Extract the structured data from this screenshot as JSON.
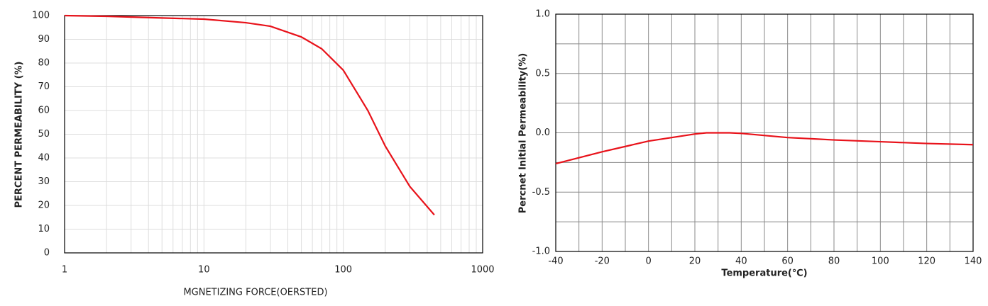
{
  "chart_data": [
    {
      "type": "line",
      "xlog": true,
      "xlabel": "MGNETIZING FORCE(OERSTED)",
      "ylabel": "PERCENT PERMEABILITY (%)",
      "xlim": [
        1,
        1000
      ],
      "ylim": [
        0,
        100
      ],
      "xticks": [
        1,
        10,
        100,
        1000
      ],
      "yticks": [
        0,
        10,
        20,
        30,
        40,
        50,
        60,
        70,
        80,
        90,
        100
      ],
      "grid_x": [
        2,
        3,
        4,
        5,
        6,
        7,
        8,
        9,
        20,
        30,
        40,
        50,
        60,
        70,
        80,
        90,
        200,
        300,
        400,
        500,
        600,
        700,
        800,
        900
      ],
      "grid_color": "#dddddd",
      "series": [
        {
          "color": "#e8121a",
          "x": [
            1,
            2,
            5,
            10,
            20,
            30,
            50,
            70,
            100,
            150,
            200,
            300,
            450
          ],
          "values": [
            100,
            99.7,
            99,
            98.5,
            97,
            95.5,
            91,
            86,
            77,
            60,
            45,
            28,
            16
          ]
        }
      ]
    },
    {
      "type": "line",
      "xlog": false,
      "xlabel": "Temperature(℃)",
      "ylabel": "Percnet Initial Permeability(%)",
      "xlim": [
        -40,
        140
      ],
      "ylim": [
        -1,
        1
      ],
      "xticks": [
        -40,
        -20,
        0,
        20,
        40,
        60,
        80,
        100,
        120,
        140
      ],
      "yticks": [
        {
          "value": -1,
          "label": "-1.0"
        },
        -0.5,
        {
          "value": 0,
          "label": "0.0"
        },
        0.5,
        {
          "value": 1,
          "label": "1.0"
        }
      ],
      "grid_x": [
        -30,
        -10,
        10,
        30,
        50,
        70,
        90,
        110,
        130
      ],
      "grid_y": [
        -0.75,
        -0.25,
        0.25,
        0.75
      ],
      "grid_color": "#8a8a8a",
      "series": [
        {
          "color": "#e8121a",
          "x": [
            -40,
            -20,
            0,
            20,
            25,
            35,
            40,
            60,
            80,
            100,
            120,
            140
          ],
          "values": [
            -0.26,
            -0.16,
            -0.07,
            -0.01,
            0,
            0,
            -0.005,
            -0.04,
            -0.06,
            -0.075,
            -0.09,
            -0.1
          ]
        }
      ]
    }
  ]
}
